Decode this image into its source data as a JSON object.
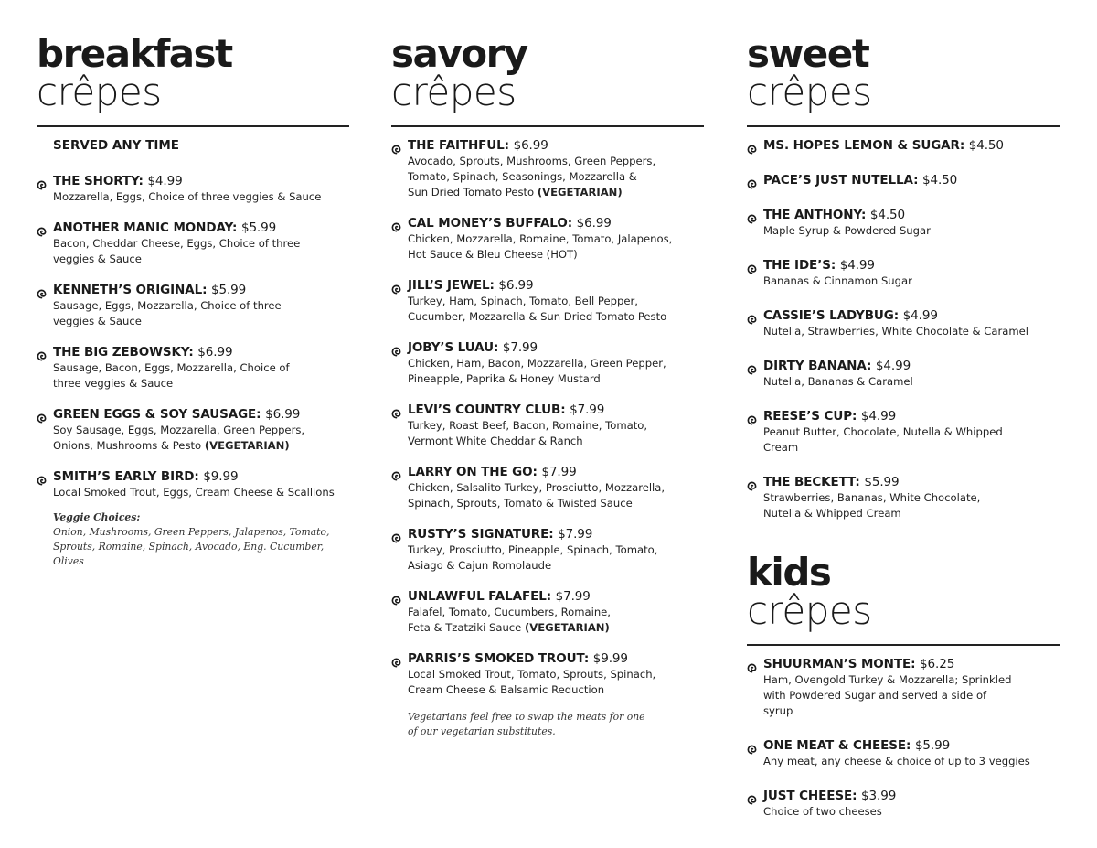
{
  "bullet_icon": "spiral-bullet-icon",
  "breakfast": {
    "title_bold": "breakfast",
    "title_light": "crêpes",
    "subtitle": "SERVED ANY TIME",
    "items": [
      {
        "name": "THE SHORTY:",
        "price": "$4.99",
        "desc": "Mozzarella, Eggs, Choice of three veggies & Sauce"
      },
      {
        "name": "ANOTHER MANIC MONDAY:",
        "price": "$5.99",
        "desc": "Bacon, Cheddar Cheese, Eggs, Choice of three veggies & Sauce"
      },
      {
        "name": "KENNETH’S ORIGINAL:",
        "price": "$5.99",
        "desc": "Sausage, Eggs, Mozzarella, Choice of three veggies & Sauce"
      },
      {
        "name": "THE BIG ZEBOWSKY:",
        "price": "$6.99",
        "desc": "Sausage, Bacon, Eggs, Mozzarella, Choice of three veggies & Sauce"
      },
      {
        "name": "GREEN EGGS & SOY SAUSAGE:",
        "price": "$6.99",
        "desc": "Soy Sausage, Eggs, Mozzarella, Green Peppers, Onions, Mushrooms & Pesto",
        "tag": "(VEGETARIAN)"
      },
      {
        "name": "SMITH’S EARLY BIRD:",
        "price": "$9.99",
        "desc": "Local Smoked Trout, Eggs, Cream Cheese & Scallions"
      }
    ],
    "note_title": "Veggie Choices:",
    "note": "Onion, Mushrooms, Green Peppers, Jalapenos, Tomato, Sprouts, Romaine, Spinach, Avocado, Eng. Cucumber, Olives"
  },
  "savory": {
    "title_bold": "savory",
    "title_light": "crêpes",
    "items": [
      {
        "name": "THE FAITHFUL:",
        "price": "$6.99",
        "desc": "Avocado, Sprouts, Mushrooms, Green Peppers, Tomato, Spinach, Seasonings, Mozzarella & Sun Dried Tomato Pesto",
        "tag": "(VEGETARIAN)"
      },
      {
        "name": "CAL MONEY’S BUFFALO:",
        "price": "$6.99",
        "desc": "Chicken, Mozzarella, Romaine, Tomato, Jalapenos, Hot Sauce & Bleu Cheese (HOT)"
      },
      {
        "name": "JILL’S JEWEL:",
        "price": "$6.99",
        "desc": "Turkey, Ham, Spinach, Tomato, Bell Pepper, Cucumber, Mozzarella & Sun Dried Tomato Pesto"
      },
      {
        "name": "JOBY’S LUAU:",
        "price": "$7.99",
        "desc": "Chicken, Ham, Bacon, Mozzarella, Green Pepper, Pineapple, Paprika & Honey Mustard"
      },
      {
        "name": "LEVI’S COUNTRY CLUB:",
        "price": "$7.99",
        "desc": "Turkey, Roast Beef, Bacon, Romaine, Tomato, Vermont White Cheddar & Ranch"
      },
      {
        "name": "LARRY ON THE GO:",
        "price": "$7.99",
        "desc": "Chicken, Salsalito Turkey, Prosciutto, Mozzarella, Spinach, Sprouts, Tomato & Twisted Sauce"
      },
      {
        "name": "RUSTY’S SIGNATURE:",
        "price": "$7.99",
        "desc": "Turkey, Prosciutto, Pineapple, Spinach, Tomato, Asiago & Cajun Romolaude"
      },
      {
        "name": "UNLAWFUL FALAFEL:",
        "price": "$7.99",
        "desc": "Falafel, Tomato, Cucumbers, Romaine, Feta & Tzatziki Sauce",
        "tag": "(VEGETARIAN)"
      },
      {
        "name": "PARRIS’S SMOKED TROUT:",
        "price": "$9.99",
        "desc": "Local Smoked Trout, Tomato, Sprouts, Spinach, Cream Cheese & Balsamic Reduction"
      }
    ],
    "note": "Vegetarians feel free to swap the meats for one of our vegetarian substitutes."
  },
  "sweet": {
    "title_bold": "sweet",
    "title_light": "crêpes",
    "items": [
      {
        "name": "MS. HOPES LEMON & SUGAR:",
        "price": "$4.50"
      },
      {
        "name": "PACE’S JUST NUTELLA:",
        "price": "$4.50"
      },
      {
        "name": "THE ANTHONY:",
        "price": "$4.50",
        "desc": "Maple Syrup & Powdered Sugar"
      },
      {
        "name": "THE IDE’S:",
        "price": "$4.99",
        "desc": "Bananas & Cinnamon Sugar"
      },
      {
        "name": "CASSIE’S LADYBUG:",
        "price": "$4.99",
        "desc": "Nutella, Strawberries, White Chocolate & Caramel"
      },
      {
        "name": "DIRTY BANANA:",
        "price": "$4.99",
        "desc": "Nutella, Bananas & Caramel"
      },
      {
        "name": "REESE’S CUP:",
        "price": "$4.99",
        "desc": "Peanut Butter, Chocolate, Nutella & Whipped Cream"
      },
      {
        "name": "THE BECKETT:",
        "price": "$5.99",
        "desc": "Strawberries, Bananas, White Chocolate, Nutella & Whipped Cream"
      }
    ]
  },
  "kids": {
    "title_bold": "kids",
    "title_light": "crêpes",
    "items": [
      {
        "name": "SHUURMAN’S MONTE:",
        "price": "$6.25",
        "desc": "Ham, Ovengold Turkey & Mozzarella; Sprinkled with Powdered Sugar and served a side of syrup"
      },
      {
        "name": "ONE MEAT & CHEESE:",
        "price": "$5.99",
        "desc": "Any meat, any cheese & choice of up to 3 veggies"
      },
      {
        "name": "JUST CHEESE:",
        "price": "$3.99",
        "desc": "Choice of two cheeses"
      }
    ]
  }
}
